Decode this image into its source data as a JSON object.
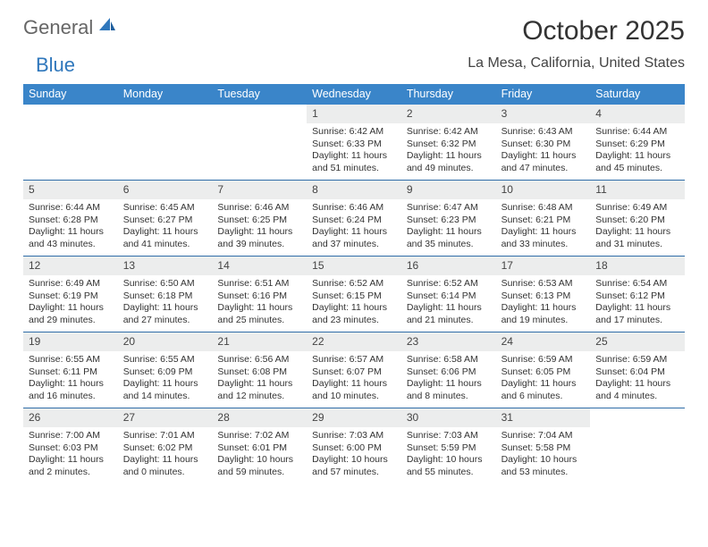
{
  "brand": {
    "part1": "General",
    "part2": "Blue",
    "logo_color": "#2f77bc"
  },
  "title": "October 2025",
  "location": "La Mesa, California, United States",
  "colors": {
    "header_bg": "#3a85c9",
    "header_text": "#ffffff",
    "daynum_bg": "#eceded",
    "week_border": "#2f6da8"
  },
  "dow": [
    "Sunday",
    "Monday",
    "Tuesday",
    "Wednesday",
    "Thursday",
    "Friday",
    "Saturday"
  ],
  "weeks": [
    [
      {
        "n": "",
        "sr": "",
        "ss": "",
        "dl": ""
      },
      {
        "n": "",
        "sr": "",
        "ss": "",
        "dl": ""
      },
      {
        "n": "",
        "sr": "",
        "ss": "",
        "dl": ""
      },
      {
        "n": "1",
        "sr": "Sunrise: 6:42 AM",
        "ss": "Sunset: 6:33 PM",
        "dl": "Daylight: 11 hours and 51 minutes."
      },
      {
        "n": "2",
        "sr": "Sunrise: 6:42 AM",
        "ss": "Sunset: 6:32 PM",
        "dl": "Daylight: 11 hours and 49 minutes."
      },
      {
        "n": "3",
        "sr": "Sunrise: 6:43 AM",
        "ss": "Sunset: 6:30 PM",
        "dl": "Daylight: 11 hours and 47 minutes."
      },
      {
        "n": "4",
        "sr": "Sunrise: 6:44 AM",
        "ss": "Sunset: 6:29 PM",
        "dl": "Daylight: 11 hours and 45 minutes."
      }
    ],
    [
      {
        "n": "5",
        "sr": "Sunrise: 6:44 AM",
        "ss": "Sunset: 6:28 PM",
        "dl": "Daylight: 11 hours and 43 minutes."
      },
      {
        "n": "6",
        "sr": "Sunrise: 6:45 AM",
        "ss": "Sunset: 6:27 PM",
        "dl": "Daylight: 11 hours and 41 minutes."
      },
      {
        "n": "7",
        "sr": "Sunrise: 6:46 AM",
        "ss": "Sunset: 6:25 PM",
        "dl": "Daylight: 11 hours and 39 minutes."
      },
      {
        "n": "8",
        "sr": "Sunrise: 6:46 AM",
        "ss": "Sunset: 6:24 PM",
        "dl": "Daylight: 11 hours and 37 minutes."
      },
      {
        "n": "9",
        "sr": "Sunrise: 6:47 AM",
        "ss": "Sunset: 6:23 PM",
        "dl": "Daylight: 11 hours and 35 minutes."
      },
      {
        "n": "10",
        "sr": "Sunrise: 6:48 AM",
        "ss": "Sunset: 6:21 PM",
        "dl": "Daylight: 11 hours and 33 minutes."
      },
      {
        "n": "11",
        "sr": "Sunrise: 6:49 AM",
        "ss": "Sunset: 6:20 PM",
        "dl": "Daylight: 11 hours and 31 minutes."
      }
    ],
    [
      {
        "n": "12",
        "sr": "Sunrise: 6:49 AM",
        "ss": "Sunset: 6:19 PM",
        "dl": "Daylight: 11 hours and 29 minutes."
      },
      {
        "n": "13",
        "sr": "Sunrise: 6:50 AM",
        "ss": "Sunset: 6:18 PM",
        "dl": "Daylight: 11 hours and 27 minutes."
      },
      {
        "n": "14",
        "sr": "Sunrise: 6:51 AM",
        "ss": "Sunset: 6:16 PM",
        "dl": "Daylight: 11 hours and 25 minutes."
      },
      {
        "n": "15",
        "sr": "Sunrise: 6:52 AM",
        "ss": "Sunset: 6:15 PM",
        "dl": "Daylight: 11 hours and 23 minutes."
      },
      {
        "n": "16",
        "sr": "Sunrise: 6:52 AM",
        "ss": "Sunset: 6:14 PM",
        "dl": "Daylight: 11 hours and 21 minutes."
      },
      {
        "n": "17",
        "sr": "Sunrise: 6:53 AM",
        "ss": "Sunset: 6:13 PM",
        "dl": "Daylight: 11 hours and 19 minutes."
      },
      {
        "n": "18",
        "sr": "Sunrise: 6:54 AM",
        "ss": "Sunset: 6:12 PM",
        "dl": "Daylight: 11 hours and 17 minutes."
      }
    ],
    [
      {
        "n": "19",
        "sr": "Sunrise: 6:55 AM",
        "ss": "Sunset: 6:11 PM",
        "dl": "Daylight: 11 hours and 16 minutes."
      },
      {
        "n": "20",
        "sr": "Sunrise: 6:55 AM",
        "ss": "Sunset: 6:09 PM",
        "dl": "Daylight: 11 hours and 14 minutes."
      },
      {
        "n": "21",
        "sr": "Sunrise: 6:56 AM",
        "ss": "Sunset: 6:08 PM",
        "dl": "Daylight: 11 hours and 12 minutes."
      },
      {
        "n": "22",
        "sr": "Sunrise: 6:57 AM",
        "ss": "Sunset: 6:07 PM",
        "dl": "Daylight: 11 hours and 10 minutes."
      },
      {
        "n": "23",
        "sr": "Sunrise: 6:58 AM",
        "ss": "Sunset: 6:06 PM",
        "dl": "Daylight: 11 hours and 8 minutes."
      },
      {
        "n": "24",
        "sr": "Sunrise: 6:59 AM",
        "ss": "Sunset: 6:05 PM",
        "dl": "Daylight: 11 hours and 6 minutes."
      },
      {
        "n": "25",
        "sr": "Sunrise: 6:59 AM",
        "ss": "Sunset: 6:04 PM",
        "dl": "Daylight: 11 hours and 4 minutes."
      }
    ],
    [
      {
        "n": "26",
        "sr": "Sunrise: 7:00 AM",
        "ss": "Sunset: 6:03 PM",
        "dl": "Daylight: 11 hours and 2 minutes."
      },
      {
        "n": "27",
        "sr": "Sunrise: 7:01 AM",
        "ss": "Sunset: 6:02 PM",
        "dl": "Daylight: 11 hours and 0 minutes."
      },
      {
        "n": "28",
        "sr": "Sunrise: 7:02 AM",
        "ss": "Sunset: 6:01 PM",
        "dl": "Daylight: 10 hours and 59 minutes."
      },
      {
        "n": "29",
        "sr": "Sunrise: 7:03 AM",
        "ss": "Sunset: 6:00 PM",
        "dl": "Daylight: 10 hours and 57 minutes."
      },
      {
        "n": "30",
        "sr": "Sunrise: 7:03 AM",
        "ss": "Sunset: 5:59 PM",
        "dl": "Daylight: 10 hours and 55 minutes."
      },
      {
        "n": "31",
        "sr": "Sunrise: 7:04 AM",
        "ss": "Sunset: 5:58 PM",
        "dl": "Daylight: 10 hours and 53 minutes."
      },
      {
        "n": "",
        "sr": "",
        "ss": "",
        "dl": ""
      }
    ]
  ]
}
